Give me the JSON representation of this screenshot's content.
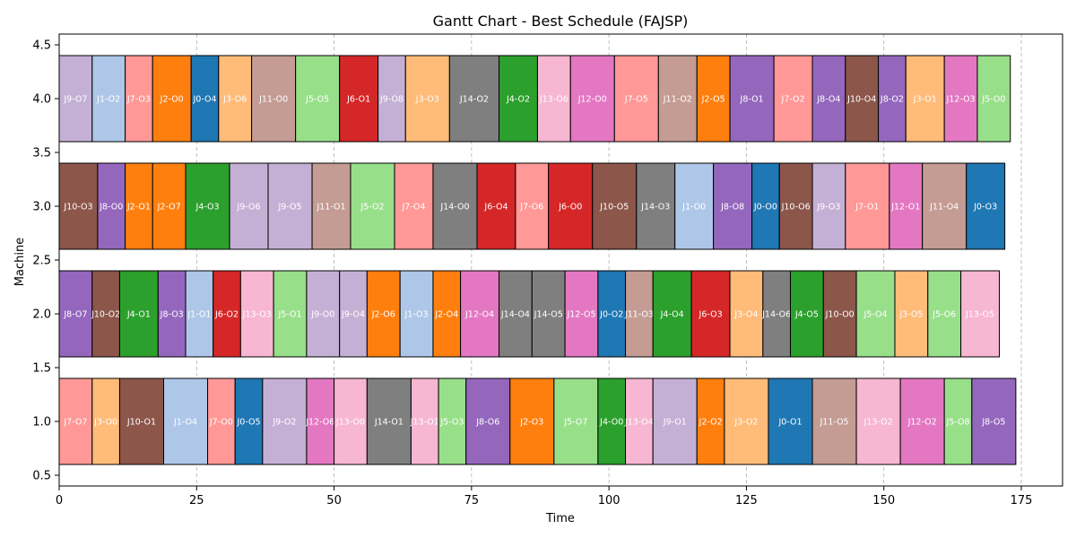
{
  "chart_data": {
    "type": "gantt",
    "title": "Gantt Chart - Best Schedule (FAJSP)",
    "xlabel": "Time",
    "ylabel": "Machine",
    "xlim": [
      0,
      182.5
    ],
    "ylim": [
      0.4,
      4.6
    ],
    "x_ticks": [
      0,
      25,
      50,
      75,
      100,
      125,
      150,
      175
    ],
    "y_ticks": [
      0.5,
      1.0,
      1.5,
      2.0,
      2.5,
      3.0,
      3.5,
      4.0,
      4.5
    ],
    "x_ticklabels": [
      "0",
      "25",
      "50",
      "75",
      "100",
      "125",
      "150",
      "175"
    ],
    "y_ticklabels": [
      "0.5",
      "1.0",
      "1.5",
      "2.0",
      "2.5",
      "3.0",
      "3.5",
      "4.0",
      "4.5"
    ],
    "grid": "vertical dashed",
    "bar_height": 0.8,
    "job_colors": {
      "J0": "#1f77b4",
      "J1": "#aec7e8",
      "J2": "#ff7f0e",
      "J3": "#ffbb78",
      "J4": "#2ca02c",
      "J5": "#98df8a",
      "J6": "#d62728",
      "J7": "#ff9896",
      "J8": "#9467bd",
      "J9": "#c5b0d5",
      "J10": "#8c564b",
      "J11": "#c49c94",
      "J12": "#e377c2",
      "J13": "#f7b6d2",
      "J14": "#7f7f7f"
    },
    "machines": [
      {
        "machine": 1,
        "ops": [
          {
            "label": "J7-O7",
            "job": "J7",
            "start": 0,
            "end": 6
          },
          {
            "label": "J3-O0",
            "job": "J3",
            "start": 6,
            "end": 11
          },
          {
            "label": "J10-O1",
            "job": "J10",
            "start": 11,
            "end": 19
          },
          {
            "label": "J1-O4",
            "job": "J1",
            "start": 19,
            "end": 27
          },
          {
            "label": "J7-O0",
            "job": "J7",
            "start": 27,
            "end": 32
          },
          {
            "label": "J0-O5",
            "job": "J0",
            "start": 32,
            "end": 37
          },
          {
            "label": "J9-O2",
            "job": "J9",
            "start": 37,
            "end": 45
          },
          {
            "label": "J12-O6",
            "job": "J12",
            "start": 45,
            "end": 50
          },
          {
            "label": "J13-O0",
            "job": "J13",
            "start": 50,
            "end": 56
          },
          {
            "label": "J14-O1",
            "job": "J14",
            "start": 56,
            "end": 64
          },
          {
            "label": "J13-O1",
            "job": "J13",
            "start": 64,
            "end": 69
          },
          {
            "label": "J5-O3",
            "job": "J5",
            "start": 69,
            "end": 74
          },
          {
            "label": "J8-O6",
            "job": "J8",
            "start": 74,
            "end": 82
          },
          {
            "label": "J2-O3",
            "job": "J2",
            "start": 82,
            "end": 90
          },
          {
            "label": "J5-O7",
            "job": "J5",
            "start": 90,
            "end": 98
          },
          {
            "label": "J4-O0",
            "job": "J4",
            "start": 98,
            "end": 103
          },
          {
            "label": "J13-O4",
            "job": "J13",
            "start": 103,
            "end": 108
          },
          {
            "label": "J9-O1",
            "job": "J9",
            "start": 108,
            "end": 116
          },
          {
            "label": "J2-O2",
            "job": "J2",
            "start": 116,
            "end": 121
          },
          {
            "label": "J3-O2",
            "job": "J3",
            "start": 121,
            "end": 129
          },
          {
            "label": "J0-O1",
            "job": "J0",
            "start": 129,
            "end": 137
          },
          {
            "label": "J11-O5",
            "job": "J11",
            "start": 137,
            "end": 145
          },
          {
            "label": "J13-O2",
            "job": "J13",
            "start": 145,
            "end": 153
          },
          {
            "label": "J12-O2",
            "job": "J12",
            "start": 153,
            "end": 161
          },
          {
            "label": "J5-O8",
            "job": "J5",
            "start": 161,
            "end": 166
          },
          {
            "label": "J8-O5",
            "job": "J8",
            "start": 166,
            "end": 174
          }
        ]
      },
      {
        "machine": 2,
        "ops": [
          {
            "label": "J8-O7",
            "job": "J8",
            "start": 0,
            "end": 6
          },
          {
            "label": "J10-O2",
            "job": "J10",
            "start": 6,
            "end": 11
          },
          {
            "label": "J4-O1",
            "job": "J4",
            "start": 11,
            "end": 18
          },
          {
            "label": "J8-O3",
            "job": "J8",
            "start": 18,
            "end": 23
          },
          {
            "label": "J1-O1",
            "job": "J1",
            "start": 23,
            "end": 28
          },
          {
            "label": "J6-O2",
            "job": "J6",
            "start": 28,
            "end": 33
          },
          {
            "label": "J13-O3",
            "job": "J13",
            "start": 33,
            "end": 39
          },
          {
            "label": "J5-O1",
            "job": "J5",
            "start": 39,
            "end": 45
          },
          {
            "label": "J9-O0",
            "job": "J9",
            "start": 45,
            "end": 51
          },
          {
            "label": "J9-O4",
            "job": "J9",
            "start": 51,
            "end": 56
          },
          {
            "label": "J2-O6",
            "job": "J2",
            "start": 56,
            "end": 62
          },
          {
            "label": "J1-O3",
            "job": "J1",
            "start": 62,
            "end": 68
          },
          {
            "label": "J2-O4",
            "job": "J2",
            "start": 68,
            "end": 73
          },
          {
            "label": "J12-O4",
            "job": "J12",
            "start": 73,
            "end": 80
          },
          {
            "label": "J14-O4",
            "job": "J14",
            "start": 80,
            "end": 86
          },
          {
            "label": "J14-O5",
            "job": "J14",
            "start": 86,
            "end": 92
          },
          {
            "label": "J12-O5",
            "job": "J12",
            "start": 92,
            "end": 98
          },
          {
            "label": "J0-O2",
            "job": "J0",
            "start": 98,
            "end": 103
          },
          {
            "label": "J11-O3",
            "job": "J11",
            "start": 103,
            "end": 108
          },
          {
            "label": "J4-O4",
            "job": "J4",
            "start": 108,
            "end": 115
          },
          {
            "label": "J6-O3",
            "job": "J6",
            "start": 115,
            "end": 122
          },
          {
            "label": "J3-O4",
            "job": "J3",
            "start": 122,
            "end": 128
          },
          {
            "label": "J14-O6",
            "job": "J14",
            "start": 128,
            "end": 133
          },
          {
            "label": "J4-O5",
            "job": "J4",
            "start": 133,
            "end": 139
          },
          {
            "label": "J10-O0",
            "job": "J10",
            "start": 139,
            "end": 145
          },
          {
            "label": "J5-O4",
            "job": "J5",
            "start": 145,
            "end": 152
          },
          {
            "label": "J3-O5",
            "job": "J3",
            "start": 152,
            "end": 158
          },
          {
            "label": "J5-O6",
            "job": "J5",
            "start": 158,
            "end": 164
          },
          {
            "label": "J13-O5",
            "job": "J13",
            "start": 164,
            "end": 171
          }
        ]
      },
      {
        "machine": 3,
        "ops": [
          {
            "label": "J10-O3",
            "job": "J10",
            "start": 0,
            "end": 7
          },
          {
            "label": "J8-O0",
            "job": "J8",
            "start": 7,
            "end": 12
          },
          {
            "label": "J2-O1",
            "job": "J2",
            "start": 12,
            "end": 17
          },
          {
            "label": "J2-O7",
            "job": "J2",
            "start": 17,
            "end": 23
          },
          {
            "label": "J4-O3",
            "job": "J4",
            "start": 23,
            "end": 31
          },
          {
            "label": "J9-O6",
            "job": "J9",
            "start": 31,
            "end": 38
          },
          {
            "label": "J9-O5",
            "job": "J9",
            "start": 38,
            "end": 46
          },
          {
            "label": "J11-O1",
            "job": "J11",
            "start": 46,
            "end": 53
          },
          {
            "label": "J5-O2",
            "job": "J5",
            "start": 53,
            "end": 61
          },
          {
            "label": "J7-O4",
            "job": "J7",
            "start": 61,
            "end": 68
          },
          {
            "label": "J14-O0",
            "job": "J14",
            "start": 68,
            "end": 76
          },
          {
            "label": "J6-O4",
            "job": "J6",
            "start": 76,
            "end": 83
          },
          {
            "label": "J7-O6",
            "job": "J7",
            "start": 83,
            "end": 89
          },
          {
            "label": "J6-O0",
            "job": "J6",
            "start": 89,
            "end": 97
          },
          {
            "label": "J10-O5",
            "job": "J10",
            "start": 97,
            "end": 105
          },
          {
            "label": "J14-O3",
            "job": "J14",
            "start": 105,
            "end": 112
          },
          {
            "label": "J1-O0",
            "job": "J1",
            "start": 112,
            "end": 119
          },
          {
            "label": "J8-O8",
            "job": "J8",
            "start": 119,
            "end": 126
          },
          {
            "label": "J0-O0",
            "job": "J0",
            "start": 126,
            "end": 131
          },
          {
            "label": "J10-O6",
            "job": "J10",
            "start": 131,
            "end": 137
          },
          {
            "label": "J9-O3",
            "job": "J9",
            "start": 137,
            "end": 143
          },
          {
            "label": "J7-O1",
            "job": "J7",
            "start": 143,
            "end": 151
          },
          {
            "label": "J12-O1",
            "job": "J12",
            "start": 151,
            "end": 157
          },
          {
            "label": "J11-O4",
            "job": "J11",
            "start": 157,
            "end": 165
          },
          {
            "label": "J0-O3",
            "job": "J0",
            "start": 165,
            "end": 172
          }
        ]
      },
      {
        "machine": 4,
        "ops": [
          {
            "label": "J9-O7",
            "job": "J9",
            "start": 0,
            "end": 6
          },
          {
            "label": "J1-O2",
            "job": "J1",
            "start": 6,
            "end": 12
          },
          {
            "label": "J7-O3",
            "job": "J7",
            "start": 12,
            "end": 17
          },
          {
            "label": "J2-O0",
            "job": "J2",
            "start": 17,
            "end": 24
          },
          {
            "label": "J0-O4",
            "job": "J0",
            "start": 24,
            "end": 29
          },
          {
            "label": "J3-O6",
            "job": "J3",
            "start": 29,
            "end": 35
          },
          {
            "label": "J11-O0",
            "job": "J11",
            "start": 35,
            "end": 43
          },
          {
            "label": "J5-O5",
            "job": "J5",
            "start": 43,
            "end": 51
          },
          {
            "label": "J6-O1",
            "job": "J6",
            "start": 51,
            "end": 58
          },
          {
            "label": "J9-O8",
            "job": "J9",
            "start": 58,
            "end": 63
          },
          {
            "label": "J3-O3",
            "job": "J3",
            "start": 63,
            "end": 71
          },
          {
            "label": "J14-O2",
            "job": "J14",
            "start": 71,
            "end": 80
          },
          {
            "label": "J4-O2",
            "job": "J4",
            "start": 80,
            "end": 87
          },
          {
            "label": "J13-O6",
            "job": "J13",
            "start": 87,
            "end": 93
          },
          {
            "label": "J12-O0",
            "job": "J12",
            "start": 93,
            "end": 101
          },
          {
            "label": "J7-O5",
            "job": "J7",
            "start": 101,
            "end": 109
          },
          {
            "label": "J11-O2",
            "job": "J11",
            "start": 109,
            "end": 116
          },
          {
            "label": "J2-O5",
            "job": "J2",
            "start": 116,
            "end": 122
          },
          {
            "label": "J8-O1",
            "job": "J8",
            "start": 122,
            "end": 130
          },
          {
            "label": "J7-O2",
            "job": "J7",
            "start": 130,
            "end": 137
          },
          {
            "label": "J8-O4",
            "job": "J8",
            "start": 137,
            "end": 143
          },
          {
            "label": "J10-O4",
            "job": "J10",
            "start": 143,
            "end": 149
          },
          {
            "label": "J8-O2",
            "job": "J8",
            "start": 149,
            "end": 154
          },
          {
            "label": "J3-O1",
            "job": "J3",
            "start": 154,
            "end": 161
          },
          {
            "label": "J12-O3",
            "job": "J12",
            "start": 161,
            "end": 167
          },
          {
            "label": "J5-O0",
            "job": "J5",
            "start": 167,
            "end": 173
          }
        ]
      }
    ]
  }
}
